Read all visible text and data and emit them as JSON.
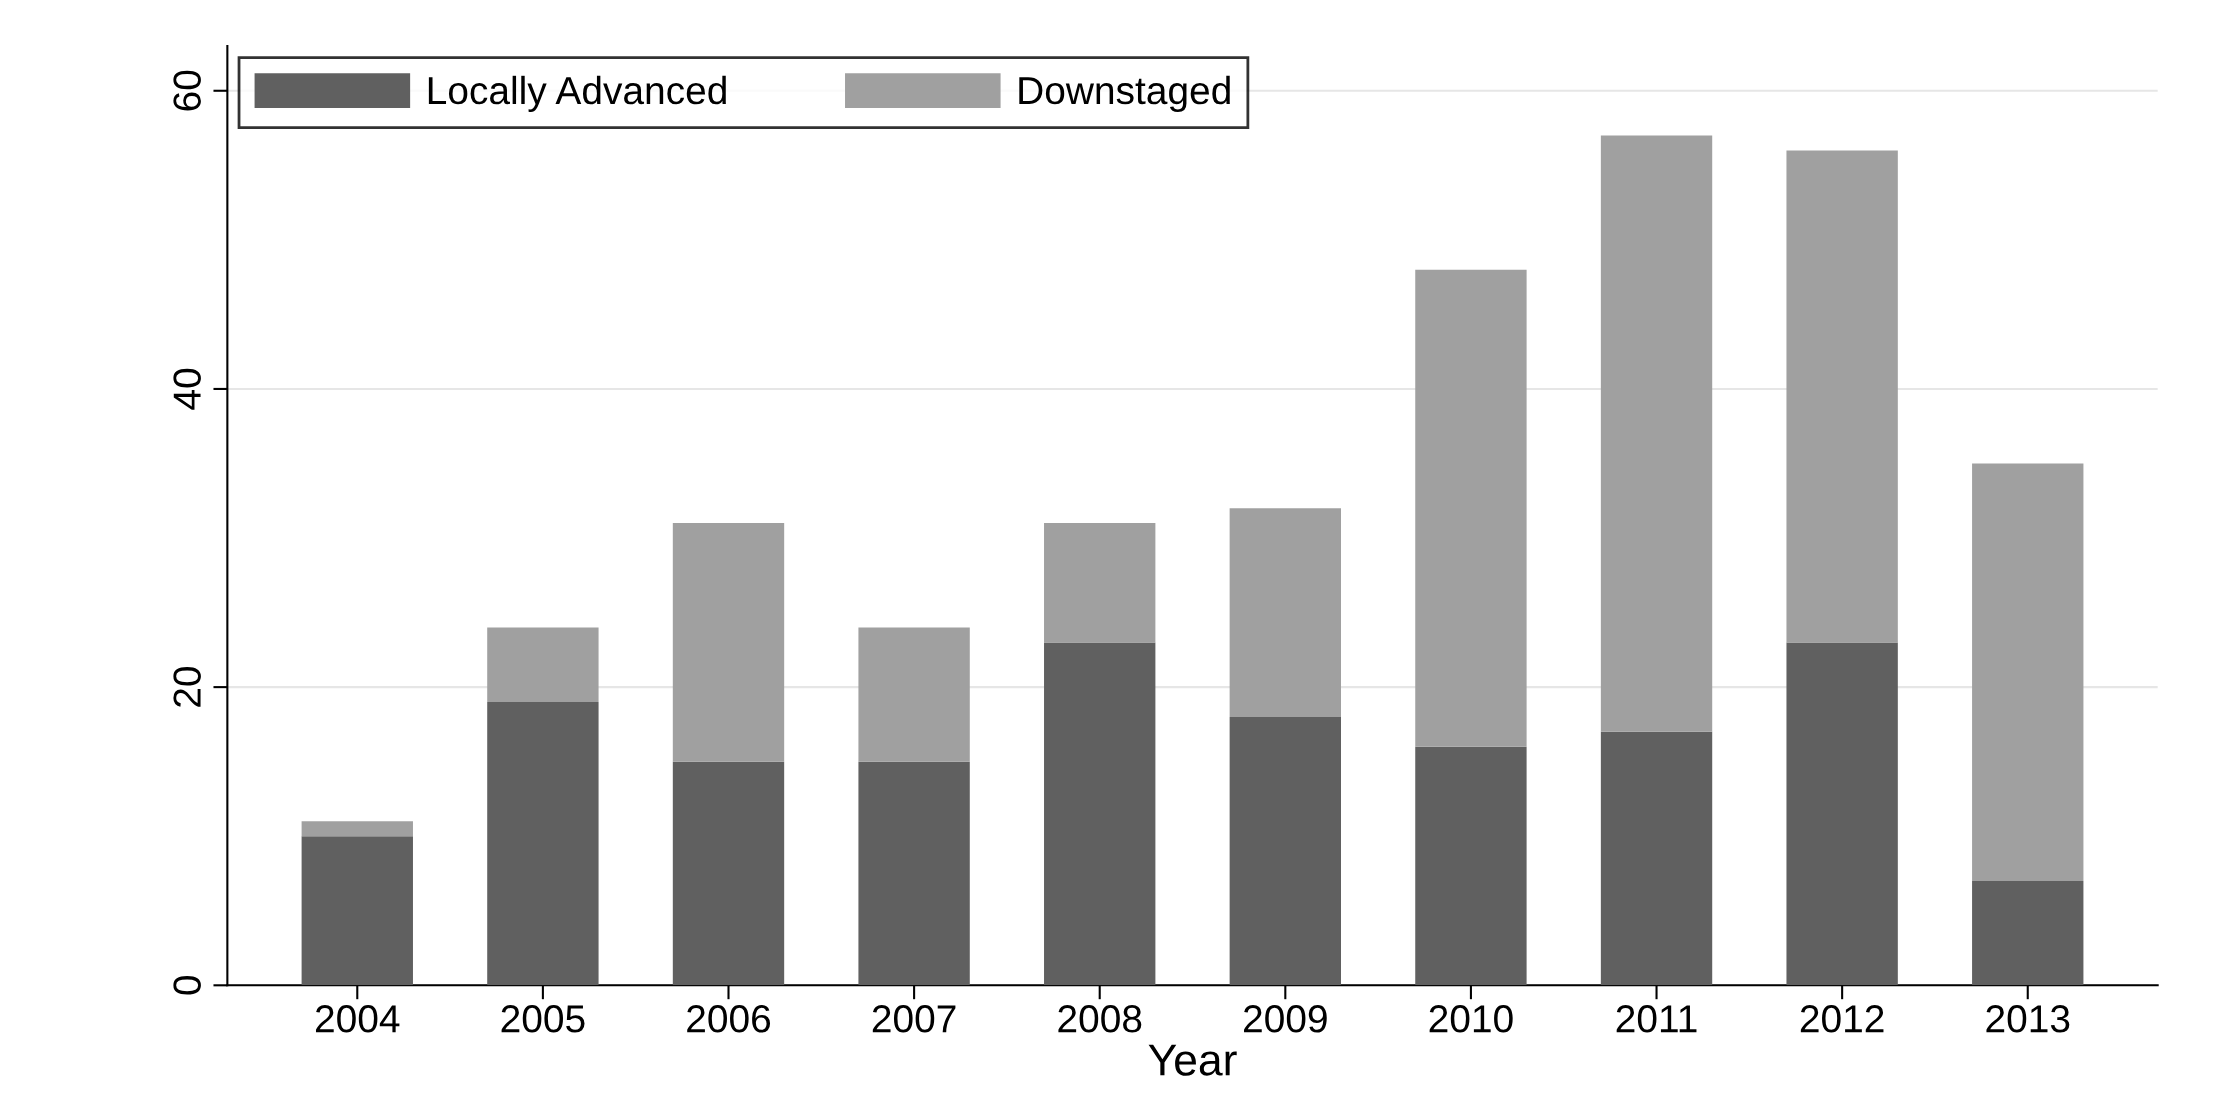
{
  "chart_data": {
    "type": "bar",
    "stacked": true,
    "xlabel": "Year",
    "categories": [
      "2004",
      "2005",
      "2006",
      "2007",
      "2008",
      "2009",
      "2010",
      "2011",
      "2012",
      "2013"
    ],
    "series": [
      {
        "name": "Locally Advanced",
        "color": "#606060",
        "values": [
          10,
          19,
          15,
          15,
          23,
          18,
          16,
          17,
          23,
          7
        ]
      },
      {
        "name": "Downstaged",
        "color": "#a0a0a0",
        "values": [
          1,
          5,
          16,
          9,
          8,
          14,
          32,
          40,
          33,
          28
        ]
      }
    ],
    "ylim": [
      0,
      63
    ],
    "yticks": [
      0,
      20,
      40,
      60
    ],
    "grid": "y",
    "legend": "top left"
  }
}
